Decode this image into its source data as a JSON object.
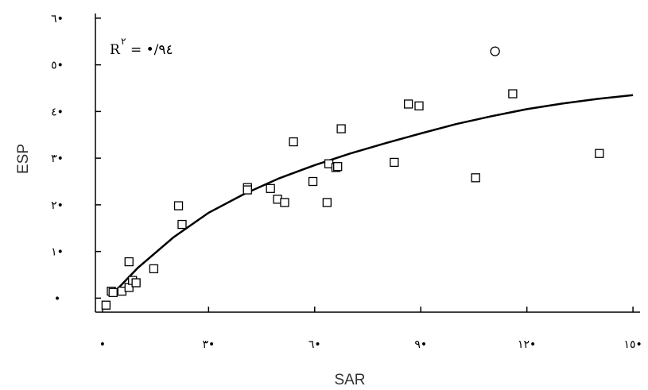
{
  "chart_data": {
    "type": "scatter",
    "xlabel": "SAR",
    "ylabel": "ESP",
    "xlim": [
      -2,
      152
    ],
    "ylim": [
      -3,
      61
    ],
    "x_ticks": [
      {
        "value": 0,
        "label": "•"
      },
      {
        "value": 30,
        "label": "٣•"
      },
      {
        "value": 60,
        "label": "٦•"
      },
      {
        "value": 90,
        "label": "٩•"
      },
      {
        "value": 120,
        "label": "١٢•"
      },
      {
        "value": 150,
        "label": "١٥•"
      }
    ],
    "y_ticks": [
      {
        "value": 0,
        "label": "•"
      },
      {
        "value": 10,
        "label": "١•"
      },
      {
        "value": 20,
        "label": "٢•"
      },
      {
        "value": 30,
        "label": "٣•"
      },
      {
        "value": 40,
        "label": "٤•"
      },
      {
        "value": 50,
        "label": "٥•"
      },
      {
        "value": 60,
        "label": "٦•"
      }
    ],
    "annotation": {
      "r2_symbol": "R",
      "r2_exponent": "٢",
      "r2_value": "= •/٩٤"
    },
    "points": [
      {
        "x": 1,
        "y": -1.5,
        "marker": "square"
      },
      {
        "x": 2.5,
        "y": 1.5,
        "marker": "square"
      },
      {
        "x": 3,
        "y": 1.2,
        "marker": "square"
      },
      {
        "x": 5.5,
        "y": 1.5,
        "marker": "square"
      },
      {
        "x": 7.5,
        "y": 2.3,
        "marker": "square"
      },
      {
        "x": 8.5,
        "y": 3.8,
        "marker": "square"
      },
      {
        "x": 7.5,
        "y": 7.8,
        "marker": "square"
      },
      {
        "x": 9.5,
        "y": 3.3,
        "marker": "square"
      },
      {
        "x": 14.5,
        "y": 6.3,
        "marker": "square"
      },
      {
        "x": 21.5,
        "y": 19.8,
        "marker": "square"
      },
      {
        "x": 22.5,
        "y": 15.8,
        "marker": "square"
      },
      {
        "x": 41,
        "y": 23.7,
        "marker": "square"
      },
      {
        "x": 41,
        "y": 23.2,
        "marker": "square"
      },
      {
        "x": 47.5,
        "y": 23.5,
        "marker": "square"
      },
      {
        "x": 49.5,
        "y": 21.2,
        "marker": "square"
      },
      {
        "x": 51.5,
        "y": 20.5,
        "marker": "square"
      },
      {
        "x": 54,
        "y": 33.5,
        "marker": "square"
      },
      {
        "x": 59.5,
        "y": 25,
        "marker": "square"
      },
      {
        "x": 63.5,
        "y": 20.5,
        "marker": "square"
      },
      {
        "x": 64,
        "y": 28.8,
        "marker": "square"
      },
      {
        "x": 66,
        "y": 28,
        "marker": "square"
      },
      {
        "x": 66.5,
        "y": 28.2,
        "marker": "square"
      },
      {
        "x": 67.5,
        "y": 36.3,
        "marker": "square"
      },
      {
        "x": 82.5,
        "y": 29.1,
        "marker": "square"
      },
      {
        "x": 86.5,
        "y": 41.6,
        "marker": "square"
      },
      {
        "x": 89.5,
        "y": 41.2,
        "marker": "square"
      },
      {
        "x": 105.5,
        "y": 25.8,
        "marker": "square"
      },
      {
        "x": 116,
        "y": 43.8,
        "marker": "square"
      },
      {
        "x": 111,
        "y": 52.9,
        "marker": "circle"
      },
      {
        "x": 140.5,
        "y": 31,
        "marker": "square"
      }
    ],
    "fit": {
      "x": [
        3,
        10,
        20,
        30,
        40,
        50,
        60,
        70,
        80,
        90,
        100,
        110,
        120,
        130,
        140,
        150
      ],
      "y": [
        1,
        6.5,
        13,
        18.3,
        22.3,
        25.7,
        28.5,
        31,
        33.2,
        35.3,
        37.3,
        39,
        40.5,
        41.7,
        42.7,
        43.5
      ]
    }
  }
}
